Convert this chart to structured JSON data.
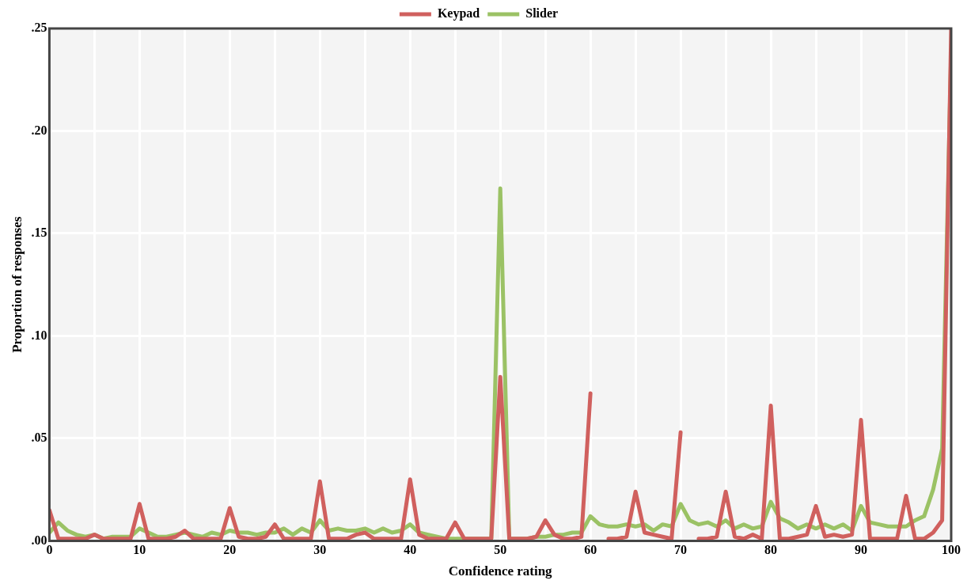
{
  "chart_data": {
    "type": "line",
    "xlabel": "Confidence rating",
    "ylabel": "Proportion of responses",
    "x": [
      0,
      1,
      2,
      3,
      4,
      5,
      6,
      7,
      8,
      9,
      10,
      11,
      12,
      13,
      14,
      15,
      16,
      17,
      18,
      19,
      20,
      21,
      22,
      23,
      24,
      25,
      26,
      27,
      28,
      29,
      30,
      31,
      32,
      33,
      34,
      35,
      36,
      37,
      38,
      39,
      40,
      41,
      42,
      43,
      44,
      45,
      46,
      47,
      48,
      49,
      50,
      51,
      52,
      53,
      54,
      55,
      56,
      57,
      58,
      59,
      60,
      61,
      62,
      63,
      64,
      65,
      66,
      67,
      68,
      69,
      70,
      71,
      72,
      73,
      74,
      75,
      76,
      77,
      78,
      79,
      80,
      81,
      82,
      83,
      84,
      85,
      86,
      87,
      88,
      89,
      90,
      91,
      92,
      93,
      94,
      95,
      96,
      97,
      98,
      99,
      100
    ],
    "series": [
      {
        "name": "Keypad",
        "color": "#d0605e",
        "values": [
          0.015,
          0.001,
          0.001,
          0.001,
          0.001,
          0.003,
          0.001,
          0.001,
          0.001,
          0.001,
          0.018,
          0.001,
          0.001,
          0.001,
          0.002,
          0.005,
          0.001,
          0.001,
          0.001,
          0.001,
          0.016,
          0.002,
          0.001,
          0.001,
          0.002,
          0.008,
          0.001,
          0.001,
          0.001,
          0.001,
          0.029,
          0.001,
          0.001,
          0.001,
          0.003,
          0.004,
          0.001,
          0.001,
          0.001,
          0.001,
          0.03,
          0.003,
          0.001,
          0.001,
          0.001,
          0.009,
          0.001,
          0.001,
          0.001,
          0.001,
          0.08,
          0.001,
          0.001,
          0.001,
          0.002,
          0.01,
          0.003,
          0.001,
          0.001,
          0.002,
          0.072,
          null,
          0.001,
          0.001,
          0.002,
          0.024,
          0.004,
          0.003,
          0.002,
          0.001,
          0.053,
          null,
          0.001,
          0.001,
          0.002,
          0.024,
          0.002,
          0.001,
          0.003,
          0.001,
          0.066,
          0.001,
          0.001,
          0.002,
          0.003,
          0.017,
          0.002,
          0.003,
          0.002,
          0.003,
          0.059,
          0.001,
          0.001,
          0.001,
          0.001,
          0.022,
          0.001,
          0.001,
          0.004,
          0.01,
          0.25
        ]
      },
      {
        "name": "Slider",
        "color": "#9bc265",
        "values": [
          0.004,
          0.009,
          0.005,
          0.003,
          0.002,
          0.003,
          0.001,
          0.002,
          0.002,
          0.002,
          0.006,
          0.004,
          0.002,
          0.002,
          0.003,
          0.004,
          0.003,
          0.002,
          0.004,
          0.003,
          0.005,
          0.004,
          0.004,
          0.003,
          0.004,
          0.004,
          0.006,
          0.003,
          0.006,
          0.004,
          0.01,
          0.005,
          0.006,
          0.005,
          0.005,
          0.006,
          0.004,
          0.006,
          0.004,
          0.005,
          0.008,
          0.004,
          0.003,
          0.002,
          0.001,
          0.001,
          0.001,
          0.001,
          0.001,
          0.001,
          0.172,
          0.001,
          0.001,
          0.001,
          0.002,
          0.002,
          0.003,
          0.003,
          0.004,
          0.004,
          0.012,
          0.008,
          0.007,
          0.007,
          0.008,
          0.007,
          0.008,
          0.005,
          0.008,
          0.007,
          0.018,
          0.01,
          0.008,
          0.009,
          0.007,
          0.01,
          0.006,
          0.008,
          0.006,
          0.007,
          0.019,
          0.011,
          0.009,
          0.006,
          0.008,
          0.006,
          0.008,
          0.006,
          0.008,
          0.005,
          0.017,
          0.009,
          0.008,
          0.007,
          0.007,
          0.007,
          0.01,
          0.012,
          0.025,
          0.045,
          0.24
        ]
      }
    ],
    "xlim": [
      0,
      100
    ],
    "xticks": [
      0,
      {
        "value": 5,
        "label": null
      },
      10,
      {
        "value": 15,
        "label": null
      },
      20,
      {
        "value": 25,
        "label": null
      },
      30,
      {
        "value": 35,
        "label": null
      },
      40,
      {
        "value": 45,
        "label": null
      },
      50,
      {
        "value": 55,
        "label": null
      },
      60,
      {
        "value": 65,
        "label": null
      },
      70,
      {
        "value": 75,
        "label": null
      },
      80,
      {
        "value": 85,
        "label": null
      },
      90,
      {
        "value": 95,
        "label": null
      },
      100
    ],
    "ylim": [
      0,
      0.25
    ],
    "yticks": [
      {
        "value": 0,
        "label": ".00"
      },
      {
        "value": 0.05,
        "label": ".05"
      },
      {
        "value": 0.1,
        "label": ".10"
      },
      {
        "value": 0.15,
        "label": ".15"
      },
      {
        "value": 0.2,
        "label": ".20"
      },
      {
        "value": 0.25,
        "label": ".25"
      }
    ],
    "grid": true,
    "legend": "top",
    "marker": "none",
    "line_style": "solid"
  }
}
